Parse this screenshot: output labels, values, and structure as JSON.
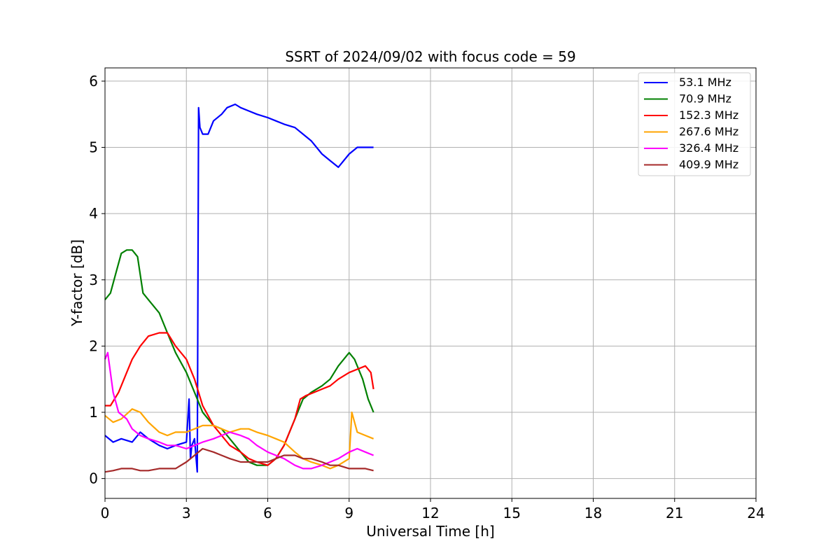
{
  "chart_data": {
    "type": "line",
    "title": "SSRT of 2024/09/02 with focus code = 59",
    "xlabel": "Universal Time [h]",
    "ylabel": "Y-factor [dB]",
    "xlim": [
      0,
      24
    ],
    "ylim": [
      -0.3,
      6.2
    ],
    "xticks": [
      0,
      3,
      6,
      9,
      12,
      15,
      18,
      21,
      24
    ],
    "yticks": [
      0,
      1,
      2,
      3,
      4,
      5,
      6
    ],
    "grid": true,
    "legend_position": "top-right",
    "series": [
      {
        "name": " 53.1 MHz",
        "color": "#0000ff",
        "x": [
          0,
          0.3,
          0.6,
          1.0,
          1.3,
          1.6,
          2.0,
          2.3,
          2.6,
          3.0,
          3.1,
          3.15,
          3.2,
          3.3,
          3.4,
          3.45,
          3.5,
          3.6,
          3.8,
          4.0,
          4.3,
          4.5,
          4.8,
          5.0,
          5.3,
          5.6,
          6.0,
          6.3,
          6.6,
          7.0,
          7.3,
          7.6,
          8.0,
          8.3,
          8.6,
          9.0,
          9.3,
          9.6,
          9.9
        ],
        "y": [
          0.65,
          0.55,
          0.6,
          0.55,
          0.7,
          0.6,
          0.5,
          0.45,
          0.5,
          0.55,
          1.2,
          0.3,
          0.5,
          0.6,
          0.1,
          5.6,
          5.3,
          5.2,
          5.2,
          5.4,
          5.5,
          5.6,
          5.65,
          5.6,
          5.55,
          5.5,
          5.45,
          5.4,
          5.35,
          5.3,
          5.2,
          5.1,
          4.9,
          4.8,
          4.7,
          4.9,
          5.0,
          5.0,
          5.0
        ]
      },
      {
        "name": " 70.9 MHz",
        "color": "#008000",
        "x": [
          0,
          0.2,
          0.4,
          0.6,
          0.8,
          1.0,
          1.2,
          1.4,
          1.6,
          2.0,
          2.3,
          2.6,
          3.0,
          3.3,
          3.6,
          4.0,
          4.3,
          4.6,
          5.0,
          5.3,
          5.6,
          6.0,
          6.3,
          6.6,
          7.0,
          7.3,
          7.6,
          8.0,
          8.3,
          8.6,
          9.0,
          9.2,
          9.5,
          9.7,
          9.9
        ],
        "y": [
          2.7,
          2.8,
          3.1,
          3.4,
          3.45,
          3.45,
          3.35,
          2.8,
          2.7,
          2.5,
          2.2,
          1.9,
          1.6,
          1.3,
          1.0,
          0.8,
          0.75,
          0.6,
          0.4,
          0.25,
          0.2,
          0.2,
          0.3,
          0.5,
          0.9,
          1.2,
          1.3,
          1.4,
          1.5,
          1.7,
          1.9,
          1.8,
          1.5,
          1.2,
          1.0
        ]
      },
      {
        "name": " 152.3 MHz",
        "color": "#ff0000",
        "x": [
          0,
          0.2,
          0.5,
          0.8,
          1.0,
          1.3,
          1.6,
          2.0,
          2.3,
          2.6,
          3.0,
          3.3,
          3.6,
          4.0,
          4.3,
          4.6,
          5.0,
          5.3,
          5.6,
          6.0,
          6.3,
          6.6,
          7.0,
          7.2,
          7.4,
          7.7,
          8.0,
          8.3,
          8.6,
          9.0,
          9.3,
          9.6,
          9.8,
          9.9
        ],
        "y": [
          1.1,
          1.1,
          1.3,
          1.6,
          1.8,
          2.0,
          2.15,
          2.2,
          2.2,
          2.0,
          1.8,
          1.5,
          1.1,
          0.8,
          0.65,
          0.5,
          0.4,
          0.3,
          0.25,
          0.2,
          0.3,
          0.5,
          0.9,
          1.2,
          1.25,
          1.3,
          1.35,
          1.4,
          1.5,
          1.6,
          1.65,
          1.7,
          1.6,
          1.35
        ]
      },
      {
        "name": " 267.6 MHz",
        "color": "#ffa500",
        "x": [
          0,
          0.3,
          0.6,
          1.0,
          1.3,
          1.6,
          2.0,
          2.3,
          2.6,
          3.0,
          3.3,
          3.6,
          4.0,
          4.3,
          4.6,
          5.0,
          5.3,
          5.6,
          6.0,
          6.3,
          6.6,
          7.0,
          7.3,
          7.6,
          8.0,
          8.3,
          8.6,
          9.0,
          9.1,
          9.3,
          9.6,
          9.9
        ],
        "y": [
          0.95,
          0.85,
          0.9,
          1.05,
          1.0,
          0.85,
          0.7,
          0.65,
          0.7,
          0.7,
          0.75,
          0.8,
          0.8,
          0.75,
          0.7,
          0.75,
          0.75,
          0.7,
          0.65,
          0.6,
          0.55,
          0.4,
          0.3,
          0.25,
          0.2,
          0.15,
          0.2,
          0.3,
          1.0,
          0.7,
          0.65,
          0.6
        ]
      },
      {
        "name": " 326.4 MHz",
        "color": "#ff00ff",
        "x": [
          0,
          0.1,
          0.3,
          0.5,
          0.8,
          1.0,
          1.3,
          1.6,
          2.0,
          2.3,
          2.6,
          3.0,
          3.3,
          3.6,
          4.0,
          4.3,
          4.6,
          5.0,
          5.3,
          5.6,
          6.0,
          6.3,
          6.6,
          7.0,
          7.3,
          7.6,
          8.0,
          8.3,
          8.6,
          9.0,
          9.3,
          9.6,
          9.9
        ],
        "y": [
          1.8,
          1.9,
          1.3,
          1.0,
          0.9,
          0.75,
          0.65,
          0.6,
          0.55,
          0.5,
          0.5,
          0.45,
          0.5,
          0.55,
          0.6,
          0.65,
          0.7,
          0.65,
          0.6,
          0.5,
          0.4,
          0.35,
          0.3,
          0.2,
          0.15,
          0.15,
          0.2,
          0.25,
          0.3,
          0.4,
          0.45,
          0.4,
          0.35
        ]
      },
      {
        "name": " 409.9 MHz",
        "color": "#a52a2a",
        "x": [
          0,
          0.3,
          0.6,
          1.0,
          1.3,
          1.6,
          2.0,
          2.3,
          2.6,
          3.0,
          3.3,
          3.6,
          4.0,
          4.3,
          4.6,
          5.0,
          5.3,
          5.6,
          6.0,
          6.3,
          6.6,
          7.0,
          7.3,
          7.6,
          8.0,
          8.3,
          8.6,
          9.0,
          9.3,
          9.6,
          9.9
        ],
        "y": [
          0.1,
          0.12,
          0.15,
          0.15,
          0.12,
          0.12,
          0.15,
          0.15,
          0.15,
          0.25,
          0.35,
          0.45,
          0.4,
          0.35,
          0.3,
          0.25,
          0.25,
          0.25,
          0.25,
          0.3,
          0.35,
          0.35,
          0.3,
          0.3,
          0.25,
          0.2,
          0.2,
          0.15,
          0.15,
          0.15,
          0.12
        ]
      }
    ]
  }
}
